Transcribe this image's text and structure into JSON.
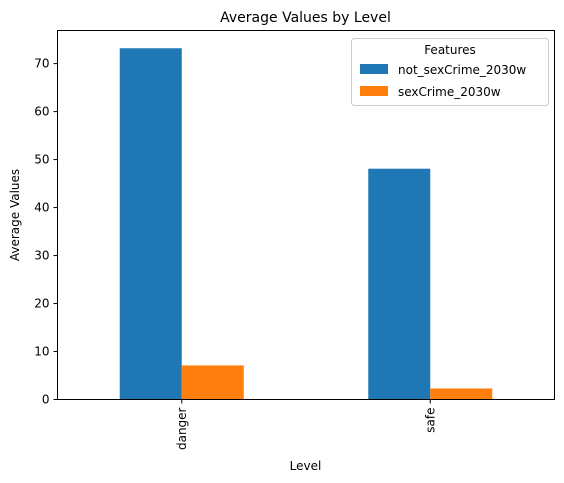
{
  "chart_data": {
    "type": "bar",
    "title": "Average Values by Level",
    "xlabel": "Level",
    "ylabel": "Average Values",
    "categories": [
      "danger",
      "safe"
    ],
    "series": [
      {
        "name": "not_sexCrime_2030w",
        "values": [
          73.2,
          48.1
        ],
        "color": "#1f77b4"
      },
      {
        "name": "sexCrime_2030w",
        "values": [
          7.1,
          2.3
        ],
        "color": "#ff7f0e"
      }
    ],
    "ylim": [
      0,
      76.9
    ],
    "yticks": [
      0,
      10,
      20,
      30,
      40,
      50,
      60,
      70
    ],
    "grid": false,
    "legend": {
      "title": "Features",
      "placement": "top-right"
    }
  }
}
